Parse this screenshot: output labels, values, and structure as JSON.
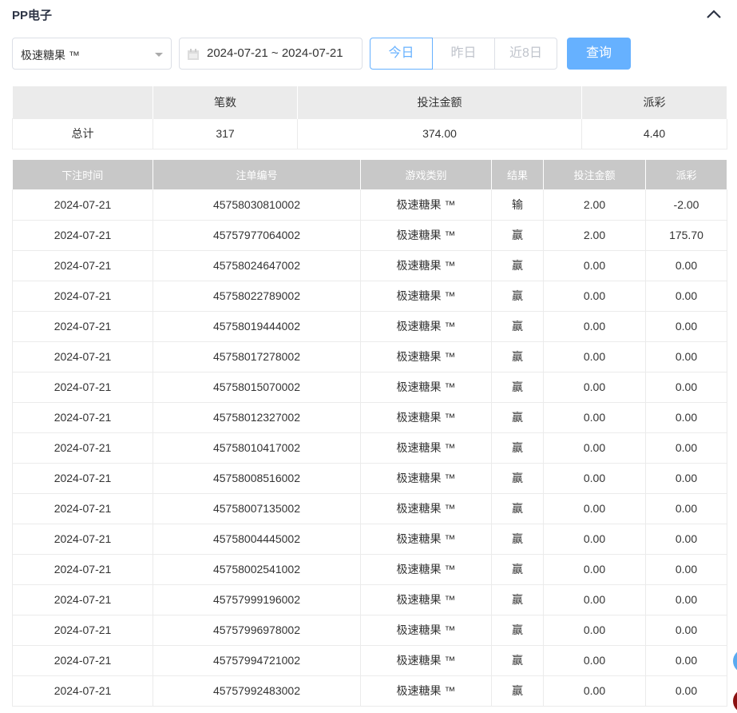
{
  "title": "PP电子",
  "filters": {
    "game": "极速糖果 ™",
    "date_range": "2024-07-21 ~ 2024-07-21",
    "quick": [
      "今日",
      "昨日",
      "近8日"
    ],
    "query": "查询"
  },
  "summary": {
    "headers": [
      "",
      "笔数",
      "投注金额",
      "派彩"
    ],
    "row": [
      "总计",
      "317",
      "374.00",
      "4.40"
    ]
  },
  "list": {
    "headers": [
      "下注时间",
      "注单编号",
      "游戏类别",
      "结果",
      "投注金额",
      "派彩"
    ],
    "rows": [
      [
        "2024-07-21",
        "45758030810002",
        "极速糖果 ™",
        "输",
        "2.00",
        "-2.00"
      ],
      [
        "2024-07-21",
        "45757977064002",
        "极速糖果 ™",
        "赢",
        "2.00",
        "175.70"
      ],
      [
        "2024-07-21",
        "45758024647002",
        "极速糖果 ™",
        "赢",
        "0.00",
        "0.00"
      ],
      [
        "2024-07-21",
        "45758022789002",
        "极速糖果 ™",
        "赢",
        "0.00",
        "0.00"
      ],
      [
        "2024-07-21",
        "45758019444002",
        "极速糖果 ™",
        "赢",
        "0.00",
        "0.00"
      ],
      [
        "2024-07-21",
        "45758017278002",
        "极速糖果 ™",
        "赢",
        "0.00",
        "0.00"
      ],
      [
        "2024-07-21",
        "45758015070002",
        "极速糖果 ™",
        "赢",
        "0.00",
        "0.00"
      ],
      [
        "2024-07-21",
        "45758012327002",
        "极速糖果 ™",
        "赢",
        "0.00",
        "0.00"
      ],
      [
        "2024-07-21",
        "45758010417002",
        "极速糖果 ™",
        "赢",
        "0.00",
        "0.00"
      ],
      [
        "2024-07-21",
        "45758008516002",
        "极速糖果 ™",
        "赢",
        "0.00",
        "0.00"
      ],
      [
        "2024-07-21",
        "45758007135002",
        "极速糖果 ™",
        "赢",
        "0.00",
        "0.00"
      ],
      [
        "2024-07-21",
        "45758004445002",
        "极速糖果 ™",
        "赢",
        "0.00",
        "0.00"
      ],
      [
        "2024-07-21",
        "45758002541002",
        "极速糖果 ™",
        "赢",
        "0.00",
        "0.00"
      ],
      [
        "2024-07-21",
        "45757999196002",
        "极速糖果 ™",
        "赢",
        "0.00",
        "0.00"
      ],
      [
        "2024-07-21",
        "45757996978002",
        "极速糖果 ™",
        "赢",
        "0.00",
        "0.00"
      ],
      [
        "2024-07-21",
        "45757994721002",
        "极速糖果 ™",
        "赢",
        "0.00",
        "0.00"
      ],
      [
        "2024-07-21",
        "45757992483002",
        "极速糖果 ™",
        "赢",
        "0.00",
        "0.00"
      ]
    ]
  },
  "colors": {
    "accent": "#66b1ff",
    "negative": "#e0415d"
  }
}
